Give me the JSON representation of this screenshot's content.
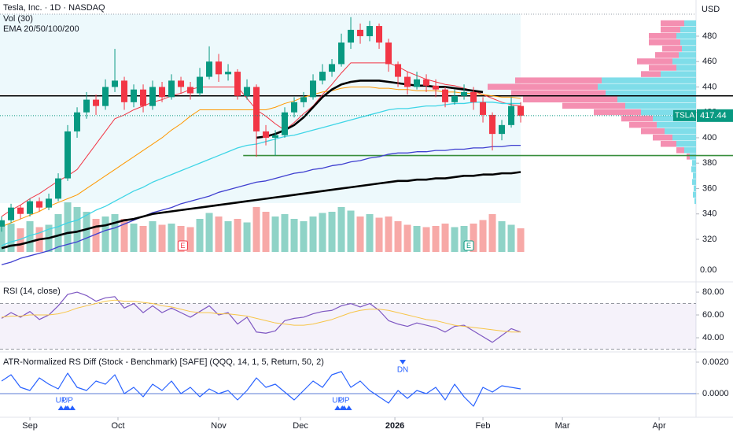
{
  "chart_data": [
    {
      "type": "candlestick",
      "title": "Tesla, Inc. · 1D · NASDAQ",
      "indicators": [
        "Vol (30)",
        "EMA 20/50/100/200"
      ],
      "currency": "USD",
      "ticker": "TSLA",
      "up_color": "#089981",
      "down_color": "#f23645",
      "ohlc": [
        [
          330,
          338,
          326,
          335
        ],
        [
          335,
          348,
          333,
          345
        ],
        [
          345,
          347,
          336,
          340
        ],
        [
          340,
          352,
          338,
          350
        ],
        [
          350,
          353,
          342,
          345
        ],
        [
          345,
          356,
          343,
          352
        ],
        [
          352,
          372,
          350,
          368
        ],
        [
          368,
          410,
          366,
          405
        ],
        [
          405,
          424,
          400,
          420
        ],
        [
          420,
          436,
          415,
          430
        ],
        [
          430,
          434,
          418,
          425
        ],
        [
          425,
          446,
          422,
          440
        ],
        [
          440,
          470,
          436,
          445
        ],
        [
          445,
          448,
          422,
          428
        ],
        [
          428,
          442,
          424,
          438
        ],
        [
          438,
          442,
          420,
          425
        ],
        [
          425,
          445,
          422,
          440
        ],
        [
          440,
          444,
          428,
          432
        ],
        [
          432,
          450,
          430,
          445
        ],
        [
          445,
          448,
          435,
          440
        ],
        [
          440,
          444,
          430,
          435
        ],
        [
          435,
          455,
          433,
          448
        ],
        [
          448,
          472,
          446,
          460
        ],
        [
          460,
          466,
          444,
          450
        ],
        [
          450,
          458,
          445,
          452
        ],
        [
          452,
          454,
          430,
          433
        ],
        [
          433,
          446,
          430,
          440
        ],
        [
          440,
          442,
          385,
          405
        ],
        [
          405,
          410,
          394,
          400
        ],
        [
          400,
          406,
          386,
          402
        ],
        [
          402,
          424,
          400,
          420
        ],
        [
          420,
          432,
          416,
          428
        ],
        [
          428,
          436,
          424,
          432
        ],
        [
          432,
          450,
          430,
          445
        ],
        [
          445,
          458,
          442,
          452
        ],
        [
          452,
          462,
          448,
          458
        ],
        [
          458,
          482,
          456,
          475
        ],
        [
          475,
          495,
          470,
          485
        ],
        [
          485,
          490,
          474,
          480
        ],
        [
          480,
          492,
          476,
          488
        ],
        [
          488,
          490,
          470,
          475
        ],
        [
          475,
          478,
          452,
          458
        ],
        [
          458,
          460,
          440,
          448
        ],
        [
          448,
          452,
          434,
          440
        ],
        [
          440,
          452,
          438,
          446
        ],
        [
          446,
          450,
          436,
          441
        ],
        [
          441,
          446,
          432,
          438
        ],
        [
          438,
          440,
          424,
          428
        ],
        [
          428,
          438,
          426,
          433
        ],
        [
          433,
          442,
          430,
          436
        ],
        [
          436,
          440,
          422,
          428
        ],
        [
          428,
          432,
          412,
          418
        ],
        [
          418,
          420,
          390,
          403
        ],
        [
          403,
          414,
          398,
          410
        ],
        [
          410,
          432,
          408,
          425
        ],
        [
          425,
          428,
          412,
          417.44
        ]
      ],
      "volume": {
        "values": [
          110,
          120,
          100,
          130,
          105,
          115,
          160,
          210,
          190,
          170,
          140,
          150,
          160,
          140,
          120,
          110,
          130,
          115,
          120,
          110,
          105,
          140,
          165,
          150,
          130,
          140,
          125,
          190,
          170,
          150,
          160,
          140,
          130,
          150,
          165,
          170,
          190,
          175,
          150,
          160,
          145,
          150,
          130,
          115,
          110,
          105,
          110,
          120,
          105,
          110,
          120,
          135,
          160,
          130,
          115,
          100
        ],
        "ylim": [
          0,
          400
        ],
        "up_color": "#8fd3c7",
        "down_color": "#f7a9a7"
      },
      "volume_scale_label": "0.00",
      "series": [
        {
          "color": "#f23645",
          "width": 1,
          "values": [
            338,
            343,
            347,
            352,
            356,
            361,
            366,
            370,
            375,
            385,
            395,
            405,
            415,
            418,
            422,
            425,
            428,
            430,
            433,
            435,
            438,
            440,
            440,
            440,
            440,
            440,
            431,
            422,
            417,
            411,
            406,
            412,
            419,
            425,
            434,
            442,
            451,
            459,
            459,
            459,
            459,
            459,
            456,
            452,
            449,
            446,
            444,
            442,
            441,
            439,
            437,
            434,
            431,
            428,
            426,
            425
          ]
        },
        {
          "color": "#ff9800",
          "width": 1,
          "values": [
            330,
            333,
            336,
            339,
            342,
            346,
            349,
            352,
            355,
            360,
            365,
            370,
            375,
            380,
            385,
            390,
            395,
            400,
            406,
            411,
            417,
            422,
            422,
            422,
            422,
            422,
            422,
            422,
            422,
            424,
            427,
            429,
            432,
            434,
            436,
            437,
            439,
            440,
            440,
            440,
            439,
            439,
            438,
            438,
            437,
            437,
            437,
            436,
            436,
            435,
            435,
            434,
            433,
            432,
            432,
            431
          ]
        },
        {
          "color": "#3fd5e6",
          "width": 1.3,
          "values": [
            315,
            318,
            320,
            323,
            325,
            328,
            330,
            333,
            335,
            339,
            343,
            346,
            350,
            354,
            358,
            361,
            365,
            368,
            371,
            374,
            377,
            380,
            383,
            386,
            389,
            392,
            394,
            395,
            397,
            399,
            401,
            402,
            404,
            406,
            408,
            410,
            412,
            414,
            416,
            418,
            420,
            422,
            423,
            423,
            424,
            425,
            425,
            426,
            427,
            427,
            428,
            428,
            428,
            427,
            427,
            427
          ]
        },
        {
          "color": "#3f3fd0",
          "width": 1.3,
          "values": [
            300,
            302,
            305,
            307,
            309,
            311,
            314,
            316,
            318,
            321,
            324,
            327,
            329,
            332,
            335,
            338,
            341,
            343,
            345,
            348,
            350,
            352,
            354,
            357,
            359,
            361,
            363,
            365,
            366,
            368,
            370,
            372,
            373,
            375,
            376,
            378,
            379,
            381,
            382,
            384,
            385,
            387,
            388,
            388,
            389,
            389,
            390,
            390,
            391,
            391,
            392,
            392,
            393,
            393,
            394,
            394
          ]
        },
        {
          "color": "#000000",
          "width": 2.6,
          "values": [
            313,
            315,
            316,
            318,
            320,
            321,
            323,
            325,
            326,
            328,
            330,
            331,
            333,
            335,
            336,
            338,
            340,
            341,
            342,
            343,
            344,
            345,
            346,
            347,
            348,
            349,
            350,
            351,
            352,
            353,
            354,
            355,
            356,
            357,
            358,
            359,
            360,
            361,
            362,
            363,
            364,
            365,
            366,
            366,
            367,
            367,
            368,
            368,
            369,
            370,
            370,
            371,
            371,
            372,
            372,
            373
          ]
        },
        {
          "color": "#000000",
          "width": 2.6,
          "values": [
            null,
            null,
            null,
            null,
            null,
            null,
            null,
            null,
            null,
            null,
            null,
            null,
            null,
            null,
            null,
            null,
            null,
            null,
            null,
            null,
            null,
            null,
            null,
            null,
            null,
            null,
            null,
            400,
            401,
            403,
            406,
            410,
            416,
            424,
            432,
            438,
            442,
            444,
            445,
            445,
            445,
            444,
            443,
            442,
            441,
            441,
            440,
            440,
            439,
            438,
            437,
            436,
            null,
            null,
            null,
            null
          ]
        }
      ],
      "levels": [
        {
          "value": 433,
          "color": "#000000",
          "start": -0.17
        },
        {
          "value": 386,
          "color": "#388e3c",
          "start": 25.6
        }
      ],
      "volume_profile": {
        "levels": [
          490,
          485,
          480,
          475,
          470,
          465,
          460,
          455,
          450,
          445,
          440,
          435,
          430,
          425,
          420,
          415,
          410,
          405,
          400,
          395,
          390,
          385,
          380,
          375,
          370,
          365,
          360,
          355,
          350
        ],
        "up": [
          15,
          20,
          25,
          20,
          18,
          22,
          30,
          25,
          45,
          120,
          125,
          115,
          100,
          90,
          70,
          55,
          50,
          40,
          30,
          25,
          15,
          8,
          5,
          6,
          4,
          5,
          3,
          4,
          2
        ],
        "down": [
          30,
          25,
          35,
          40,
          25,
          30,
          45,
          35,
          25,
          110,
          140,
          120,
          120,
          80,
          60,
          40,
          35,
          30,
          25,
          20,
          10,
          4,
          0,
          0,
          0,
          0,
          0,
          0,
          0
        ],
        "up_color": "#7fdde9",
        "down_color": "#f48fb1"
      },
      "earnings": [
        {
          "label": "E",
          "x": 19.2
        },
        {
          "label": "E",
          "x": 49.5
        }
      ],
      "ylim": [
        286.5,
        508.5
      ],
      "yticks": [
        320,
        340,
        360,
        380,
        400,
        420,
        440,
        460,
        480
      ],
      "xlim": [
        -0.17,
        73.58
      ],
      "xticks": [
        {
          "value": 3,
          "label": "Sep"
        },
        {
          "value": 12.33,
          "label": "Oct"
        },
        {
          "value": 23,
          "label": "Nov"
        },
        {
          "value": 31.67,
          "label": "Dec"
        },
        {
          "value": 41.67,
          "label": "2026"
        },
        {
          "value": 51,
          "label": "Feb"
        },
        {
          "value": 59.42,
          "label": "Mar"
        },
        {
          "value": 69.67,
          "label": "Apr"
        }
      ],
      "grid": false
    },
    {
      "type": "line",
      "title": "RSI (14, close)",
      "series": [
        {
          "color": "#7e57c2",
          "values": [
            57,
            62,
            58,
            63,
            56,
            60,
            68,
            78,
            80,
            77,
            72,
            75,
            76,
            66,
            70,
            62,
            68,
            62,
            66,
            62,
            58,
            63,
            68,
            60,
            62,
            52,
            58,
            45,
            44,
            46,
            55,
            57,
            58,
            61,
            63,
            64,
            68,
            70,
            67,
            70,
            64,
            55,
            52,
            50,
            53,
            51,
            49,
            45,
            50,
            51,
            46,
            41,
            36,
            42,
            48,
            45
          ]
        },
        {
          "color": "#f7c548",
          "values": [
            58,
            59,
            59,
            60,
            60,
            60,
            61,
            63,
            66,
            68,
            70,
            72,
            73,
            72,
            72,
            71,
            70,
            68,
            67,
            65,
            63,
            62,
            62,
            61,
            61,
            60,
            59,
            57,
            55,
            53,
            52,
            51,
            51,
            52,
            54,
            56,
            59,
            62,
            64,
            65,
            65,
            64,
            62,
            60,
            58,
            56,
            55,
            53,
            51,
            50,
            49,
            48,
            47,
            46,
            45,
            45
          ]
        }
      ],
      "bands": [
        30,
        70
      ],
      "band_color": "#7e57c2",
      "ylim": [
        27.6,
        89
      ],
      "yticks": [
        {
          "value": 80,
          "label": "80.00"
        },
        {
          "value": 60,
          "label": "60.00"
        },
        {
          "value": 40,
          "label": "40.00"
        }
      ]
    },
    {
      "type": "line",
      "title": "ATR-Normalized RS Diff (Stock - Benchmark) [SAFE] (QQQ, 14, 1, 5, Return, 50, 2)",
      "series": [
        {
          "color": "#2962ff",
          "values": [
            0.0008,
            0.0012,
            0.0004,
            0.0002,
            0.001,
            0.0006,
            0.0003,
            0.0013,
            0.0004,
            0.0002,
            0.0008,
            0.0006,
            0.0012,
            0,
            0.0004,
            -0.0002,
            0.0006,
            0.0002,
            0.0008,
            0,
            0.0004,
            -0.0002,
            0.0003,
            0,
            0.0002,
            -0.0004,
            0.0002,
            0.001,
            0.0004,
            0.0006,
            0.0001,
            -0.0004,
            0.0002,
            0.0008,
            0.0004,
            0.0012,
            0.0014,
            0.0004,
            0.0008,
            0.0002,
            -0.0002,
            -0.0006,
            0.0002,
            -0.0003,
            0.0002,
            0,
            0.0004,
            -0.0004,
            0.0006,
            -0.0002,
            -0.0008,
            0.0004,
            0.0001,
            0.0005,
            0.0004,
            0.0003
          ]
        }
      ],
      "baseline": 0,
      "signals": [
        {
          "label": "UP",
          "x": 6.3,
          "dir": "up"
        },
        {
          "label": "UP",
          "x": 7.0,
          "dir": "up"
        },
        {
          "label": "UP",
          "x": 35.6,
          "dir": "up"
        },
        {
          "label": "UP",
          "x": 36.3,
          "dir": "up"
        },
        {
          "label": "DN",
          "x": 42.5,
          "dir": "down"
        }
      ],
      "ylim": [
        -0.0015,
        0.00265
      ],
      "yticks": [
        {
          "value": 0.002,
          "label": "0.0020"
        },
        {
          "value": 0,
          "label": "0.0000"
        }
      ]
    }
  ]
}
